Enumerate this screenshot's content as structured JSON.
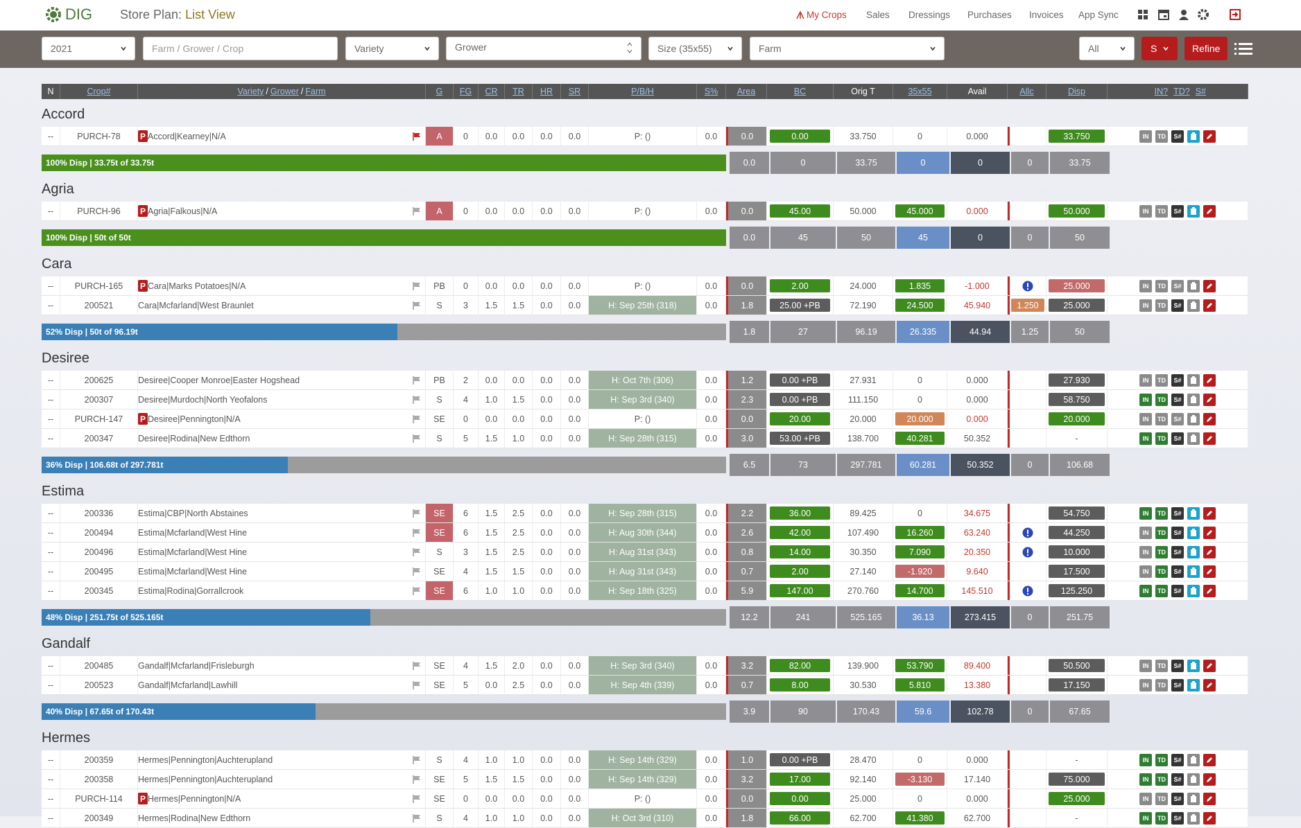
{
  "nav": {
    "logo": "DIG",
    "title_prefix": "Store Plan:",
    "title": "List View",
    "links": [
      "My Crops",
      "Sales",
      "Dressings",
      "Purchases",
      "Invoices",
      "App Sync"
    ]
  },
  "filters": {
    "year": "2021",
    "search": "Farm / Grower / Crop",
    "variety": "Variety",
    "grower": "Grower",
    "size": "Size (35x55)",
    "farm": "Farm",
    "all": "All",
    "s": "S",
    "refine": "Refine"
  },
  "header": {
    "n": "N",
    "crop": "Crop#",
    "variety": "Variety",
    "grower": "Grower",
    "farm": "Farm",
    "sep": "/",
    "g": "G",
    "fg": "FG",
    "cr": "CR",
    "tr": "TR",
    "hr": "HR",
    "sr": "SR",
    "pbh": "P/B/H",
    "s": "S%",
    "area": "Area",
    "bc": "BC",
    "orig": "Orig T",
    "size": "35x55",
    "avail": "Avail",
    "allc": "Allc",
    "disp": "Disp",
    "btns": [
      "IN?",
      "TD?",
      "S#"
    ]
  },
  "sep": "|",
  "badge": "P",
  "buttons": [
    "IN",
    "TD",
    "S#"
  ],
  "groups": [
    {
      "name": "Accord",
      "rows": [
        {
          "n": "--",
          "crop": "PURCH-78",
          "purchase": true,
          "variety": "Accord",
          "grower": "Kearney",
          "farm": "N/A",
          "flag": "red",
          "g": "A",
          "fg": "0",
          "cr": "0.0",
          "tr": "0.0",
          "hr": "0.0",
          "sr": "0.0",
          "pbh": "P: ()",
          "s": "0.0",
          "area": "0.0",
          "bc": "0.00",
          "orig": "33.750",
          "size": "0",
          "avail": "0.000",
          "disp": "33.750",
          "styles": {
            "g": "red",
            "bc": "green",
            "disp": "green"
          },
          "btn": [
            "grey",
            "grey",
            "dark",
            "cyan",
            "red"
          ]
        }
      ],
      "summary": {
        "label": "100% Disp | 33.75t of 33.75t",
        "pct": 100,
        "color": "green",
        "area": "0.0",
        "bc": "0",
        "orig": "33.75",
        "size": "0",
        "avail": "0",
        "allc": "0",
        "disp": "33.75"
      }
    },
    {
      "name": "Agria",
      "rows": [
        {
          "n": "--",
          "crop": "PURCH-96",
          "purchase": true,
          "variety": "Agria",
          "grower": "Falkous",
          "farm": "N/A",
          "flag": "grey",
          "g": "A",
          "fg": "0",
          "cr": "0.0",
          "tr": "0.0",
          "hr": "0.0",
          "sr": "0.0",
          "pbh": "P: ()",
          "s": "0.0",
          "area": "0.0",
          "bc": "45.00",
          "orig": "50.000",
          "size": "45.000",
          "avail": "0.000",
          "disp": "50.000",
          "styles": {
            "g": "red",
            "bc": "green",
            "size": "green",
            "avail": "redtext",
            "disp": "green"
          },
          "btn": [
            "grey",
            "grey",
            "dark",
            "cyan",
            "red"
          ]
        }
      ],
      "summary": {
        "label": "100% Disp | 50t of 50t",
        "pct": 100,
        "color": "green",
        "area": "0.0",
        "bc": "45",
        "orig": "50",
        "size": "45",
        "avail": "0",
        "allc": "0",
        "disp": "50"
      }
    },
    {
      "name": "Cara",
      "rows": [
        {
          "n": "--",
          "crop": "PURCH-165",
          "purchase": true,
          "variety": "Cara",
          "grower": "Marks Potatoes",
          "farm": "N/A",
          "flag": "grey",
          "g": "PB",
          "fg": "0",
          "cr": "0.0",
          "tr": "0.0",
          "hr": "0.0",
          "sr": "0.0",
          "pbh": "P: ()",
          "s": "0.0",
          "area": "0.0",
          "bc": "2.00",
          "orig": "24.000",
          "size": "1.835",
          "avail": "-1.000",
          "alert": true,
          "disp": "25.000",
          "styles": {
            "bc": "green",
            "size": "green",
            "avail": "redtext",
            "disp": "rose"
          },
          "btn": [
            "grey",
            "grey",
            "grey",
            "grey",
            "red"
          ]
        },
        {
          "n": "--",
          "crop": "200521",
          "variety": "Cara",
          "grower": "Mcfarland",
          "farm": "West Braunlet",
          "flag": "grey",
          "g": "S",
          "fg": "3",
          "cr": "1.5",
          "tr": "1.5",
          "hr": "0.0",
          "sr": "0.0",
          "pbh": "H: Sep 25th (318)",
          "s": "0.0",
          "area": "1.8",
          "bc": "25.00 +PB",
          "orig": "72.190",
          "size": "24.500",
          "avail": "45.940",
          "allc": "1.250",
          "disp": "25.000",
          "styles": {
            "pbh": "harvest",
            "bc": "dark",
            "size": "green",
            "avail": "redtext",
            "allc": "orange",
            "disp": "dark"
          },
          "btn": [
            "grey",
            "grey",
            "dark",
            "grey",
            "red"
          ]
        }
      ],
      "summary": {
        "label": "52% Disp | 50t of 96.19t",
        "pct": 52,
        "color": "blue",
        "area": "1.8",
        "bc": "27",
        "orig": "96.19",
        "size": "26.335",
        "avail": "44.94",
        "allc": "1.25",
        "disp": "50"
      }
    },
    {
      "name": "Desiree",
      "rows": [
        {
          "n": "--",
          "crop": "200625",
          "variety": "Desiree",
          "grower": "Cooper Monroe",
          "farm": "Easter Hogshead",
          "flag": "grey",
          "g": "PB",
          "fg": "2",
          "cr": "0.0",
          "tr": "0.0",
          "hr": "0.0",
          "sr": "0.0",
          "pbh": "H: Oct 7th (306)",
          "s": "0.0",
          "area": "1.2",
          "bc": "0.00 +PB",
          "orig": "27.931",
          "size": "0",
          "avail": "0.000",
          "disp": "27.930",
          "styles": {
            "pbh": "harvest",
            "bc": "dark",
            "disp": "dark"
          },
          "btn": [
            "grey",
            "grey",
            "dark",
            "grey",
            "red"
          ]
        },
        {
          "n": "--",
          "crop": "200307",
          "variety": "Desiree",
          "grower": "Murdoch",
          "farm": "North Yeofalons",
          "flag": "grey",
          "g": "S",
          "fg": "4",
          "cr": "1.0",
          "tr": "1.5",
          "hr": "0.0",
          "sr": "0.0",
          "pbh": "H: Sep 3rd (340)",
          "s": "0.0",
          "area": "2.3",
          "bc": "0.00 +PB",
          "orig": "111.150",
          "size": "0",
          "avail": "0.000",
          "disp": "58.750",
          "styles": {
            "pbh": "harvest",
            "bc": "dark",
            "disp": "dark"
          },
          "btn": [
            "green",
            "green",
            "dark",
            "grey",
            "red"
          ]
        },
        {
          "n": "--",
          "crop": "PURCH-147",
          "purchase": true,
          "variety": "Desiree",
          "grower": "Pennington",
          "farm": "N/A",
          "flag": "grey",
          "g": "SE",
          "fg": "0",
          "cr": "0.0",
          "tr": "0.0",
          "hr": "0.0",
          "sr": "0.0",
          "pbh": "P: ()",
          "s": "0.0",
          "area": "0.0",
          "bc": "20.00",
          "orig": "20.000",
          "size": "20.000",
          "avail": "0.000",
          "disp": "20.000",
          "styles": {
            "bc": "green",
            "size": "orange",
            "avail": "redtext",
            "disp": "green"
          },
          "btn": [
            "grey",
            "grey",
            "grey",
            "grey",
            "red"
          ]
        },
        {
          "n": "--",
          "crop": "200347",
          "variety": "Desiree",
          "grower": "Rodina",
          "farm": "New Edthorn",
          "flag": "grey",
          "g": "S",
          "fg": "5",
          "cr": "1.5",
          "tr": "1.0",
          "hr": "0.0",
          "sr": "0.0",
          "pbh": "H: Sep 28th (315)",
          "s": "0.0",
          "area": "3.0",
          "bc": "53.00 +PB",
          "orig": "138.700",
          "size": "40.281",
          "avail": "50.352",
          "disp": "-",
          "styles": {
            "pbh": "harvest",
            "bc": "dark",
            "size": "green"
          },
          "btn": [
            "green",
            "green",
            "dark",
            "grey",
            "red"
          ]
        }
      ],
      "summary": {
        "label": "36% Disp | 106.68t of 297.781t",
        "pct": 36,
        "color": "blue",
        "area": "6.5",
        "bc": "73",
        "orig": "297.781",
        "size": "60.281",
        "avail": "50.352",
        "allc": "0",
        "disp": "106.68"
      }
    },
    {
      "name": "Estima",
      "rows": [
        {
          "n": "--",
          "crop": "200336",
          "variety": "Estima",
          "grower": "CBP",
          "farm": "North Abstaines",
          "flag": "grey",
          "g": "SE",
          "fg": "6",
          "cr": "1.5",
          "tr": "2.5",
          "hr": "0.0",
          "sr": "0.0",
          "pbh": "H: Sep 28th (315)",
          "s": "0.0",
          "area": "2.2",
          "bc": "36.00",
          "orig": "89.425",
          "size": "0",
          "avail": "34.675",
          "disp": "54.750",
          "styles": {
            "g": "red",
            "pbh": "harvest",
            "bc": "green",
            "avail": "redtext",
            "disp": "dark"
          },
          "btn": [
            "green",
            "green",
            "dark",
            "cyan",
            "red"
          ]
        },
        {
          "n": "--",
          "crop": "200494",
          "variety": "Estima",
          "grower": "Mcfarland",
          "farm": "West Hine",
          "flag": "grey",
          "g": "SE",
          "fg": "6",
          "cr": "1.5",
          "tr": "2.5",
          "hr": "0.0",
          "sr": "0.0",
          "pbh": "H: Aug 30th (344)",
          "s": "0.0",
          "area": "2.6",
          "bc": "42.00",
          "orig": "107.490",
          "size": "16.260",
          "avail": "63.240",
          "alert": true,
          "disp": "44.250",
          "styles": {
            "g": "red",
            "pbh": "harvest",
            "bc": "green",
            "size": "green",
            "avail": "redtext",
            "disp": "dark"
          },
          "btn": [
            "grey",
            "green",
            "dark",
            "cyan",
            "red"
          ]
        },
        {
          "n": "--",
          "crop": "200496",
          "variety": "Estima",
          "grower": "Mcfarland",
          "farm": "West Hine",
          "flag": "grey",
          "g": "S",
          "fg": "3",
          "cr": "1.5",
          "tr": "2.5",
          "hr": "0.0",
          "sr": "0.0",
          "pbh": "H: Aug 31st (343)",
          "s": "0.0",
          "area": "0.8",
          "bc": "14.00",
          "orig": "30.350",
          "size": "7.090",
          "avail": "20.350",
          "alert": true,
          "disp": "10.000",
          "styles": {
            "pbh": "harvest",
            "bc": "green",
            "size": "green",
            "avail": "redtext",
            "disp": "dark"
          },
          "btn": [
            "grey",
            "green",
            "dark",
            "cyan",
            "red"
          ]
        },
        {
          "n": "--",
          "crop": "200495",
          "variety": "Estima",
          "grower": "Mcfarland",
          "farm": "West Hine",
          "flag": "grey",
          "g": "SE",
          "fg": "4",
          "cr": "1.5",
          "tr": "1.5",
          "hr": "0.0",
          "sr": "0.0",
          "pbh": "H: Aug 31st (343)",
          "s": "0.0",
          "area": "0.7",
          "bc": "2.00",
          "orig": "27.140",
          "size": "-1.920",
          "avail": "9.640",
          "disp": "17.500",
          "styles": {
            "pbh": "harvest",
            "bc": "green",
            "size": "rose",
            "avail": "redtext",
            "disp": "dark"
          },
          "btn": [
            "grey",
            "green",
            "dark",
            "cyan",
            "red"
          ]
        },
        {
          "n": "--",
          "crop": "200345",
          "variety": "Estima",
          "grower": "Rodina",
          "farm": "Gorrallcrook",
          "flag": "grey",
          "g": "SE",
          "fg": "6",
          "cr": "1.0",
          "tr": "1.0",
          "hr": "0.0",
          "sr": "0.0",
          "pbh": "H: Sep 18th (325)",
          "s": "0.0",
          "area": "5.9",
          "bc": "147.00",
          "orig": "270.760",
          "size": "14.700",
          "avail": "145.510",
          "alert": true,
          "disp": "125.250",
          "styles": {
            "g": "red",
            "pbh": "harvest",
            "bc": "green",
            "size": "green",
            "avail": "redtext",
            "disp": "dark"
          },
          "btn": [
            "green",
            "green",
            "dark",
            "cyan",
            "red"
          ]
        }
      ],
      "summary": {
        "label": "48% Disp | 251.75t of 525.165t",
        "pct": 48,
        "color": "blue",
        "area": "12.2",
        "bc": "241",
        "orig": "525.165",
        "size": "36.13",
        "avail": "273.415",
        "allc": "0",
        "disp": "251.75"
      }
    },
    {
      "name": "Gandalf",
      "rows": [
        {
          "n": "--",
          "crop": "200485",
          "variety": "Gandalf",
          "grower": "Mcfarland",
          "farm": "Frisleburgh",
          "flag": "grey",
          "g": "SE",
          "fg": "4",
          "cr": "1.5",
          "tr": "2.0",
          "hr": "0.0",
          "sr": "0.0",
          "pbh": "H: Sep 3rd (340)",
          "s": "0.0",
          "area": "3.2",
          "bc": "82.00",
          "orig": "139.900",
          "size": "53.790",
          "avail": "89.400",
          "disp": "50.500",
          "styles": {
            "pbh": "harvest",
            "bc": "green",
            "size": "green",
            "avail": "redtext",
            "disp": "dark"
          },
          "btn": [
            "grey",
            "grey",
            "dark",
            "cyan",
            "red"
          ]
        },
        {
          "n": "--",
          "crop": "200523",
          "variety": "Gandalf",
          "grower": "Mcfarland",
          "farm": "Lawhill",
          "flag": "grey",
          "g": "SE",
          "fg": "5",
          "cr": "0.0",
          "tr": "2.5",
          "hr": "0.0",
          "sr": "0.0",
          "pbh": "H: Sep 4th (339)",
          "s": "0.0",
          "area": "0.7",
          "bc": "8.00",
          "orig": "30.530",
          "size": "5.810",
          "avail": "13.380",
          "disp": "17.150",
          "styles": {
            "pbh": "harvest",
            "bc": "green",
            "size": "green",
            "avail": "redtext",
            "disp": "dark"
          },
          "btn": [
            "grey",
            "grey",
            "dark",
            "cyan",
            "red"
          ]
        }
      ],
      "summary": {
        "label": "40% Disp | 67.65t of 170.43t",
        "pct": 40,
        "color": "blue",
        "area": "3.9",
        "bc": "90",
        "orig": "170.43",
        "size": "59.6",
        "avail": "102.78",
        "allc": "0",
        "disp": "67.65"
      }
    },
    {
      "name": "Hermes",
      "rows": [
        {
          "n": "--",
          "crop": "200359",
          "variety": "Hermes",
          "grower": "Pennington",
          "farm": "Auchterupland",
          "flag": "grey",
          "g": "S",
          "fg": "4",
          "cr": "1.0",
          "tr": "1.0",
          "hr": "0.0",
          "sr": "0.0",
          "pbh": "H: Sep 14th (329)",
          "s": "0.0",
          "area": "1.0",
          "bc": "0.00 +PB",
          "orig": "28.470",
          "size": "0",
          "avail": "0.000",
          "disp": "-",
          "styles": {
            "pbh": "harvest",
            "bc": "dark"
          },
          "btn": [
            "green",
            "green",
            "dark",
            "grey",
            "red"
          ]
        },
        {
          "n": "--",
          "crop": "200358",
          "variety": "Hermes",
          "grower": "Pennington",
          "farm": "Auchterupland",
          "flag": "grey",
          "g": "SE",
          "fg": "5",
          "cr": "1.5",
          "tr": "1.5",
          "hr": "0.0",
          "sr": "0.0",
          "pbh": "H: Sep 14th (329)",
          "s": "0.0",
          "area": "3.2",
          "bc": "17.00",
          "orig": "92.140",
          "size": "-3.130",
          "avail": "17.140",
          "disp": "75.000",
          "styles": {
            "pbh": "harvest",
            "bc": "green",
            "size": "rose",
            "disp": "dark"
          },
          "btn": [
            "green",
            "green",
            "dark",
            "grey",
            "red"
          ]
        },
        {
          "n": "--",
          "crop": "PURCH-114",
          "purchase": true,
          "variety": "Hermes",
          "grower": "Pennington",
          "farm": "N/A",
          "flag": "grey",
          "g": "SE",
          "fg": "0",
          "cr": "0.0",
          "tr": "0.0",
          "hr": "0.0",
          "sr": "0.0",
          "pbh": "P: ()",
          "s": "0.0",
          "area": "0.0",
          "bc": "0.00",
          "orig": "25.000",
          "size": "0",
          "avail": "0.000",
          "disp": "25.000",
          "styles": {
            "bc": "green",
            "disp": "green"
          },
          "btn": [
            "grey",
            "grey",
            "dark",
            "grey",
            "red"
          ]
        },
        {
          "n": "--",
          "crop": "200349",
          "variety": "Hermes",
          "grower": "Rodina",
          "farm": "New Edthorn",
          "flag": "grey",
          "g": "S",
          "fg": "4",
          "cr": "1.0",
          "tr": "1.0",
          "hr": "0.0",
          "sr": "0.0",
          "pbh": "H: Oct 3rd (310)",
          "s": "0.0",
          "area": "1.8",
          "bc": "66.00",
          "orig": "62.700",
          "size": "41.380",
          "avail": "62.700",
          "disp": "-",
          "styles": {
            "pbh": "harvest",
            "bc": "green",
            "size": "green"
          },
          "btn": [
            "green",
            "green",
            "dark",
            "grey",
            "red"
          ]
        }
      ]
    }
  ]
}
